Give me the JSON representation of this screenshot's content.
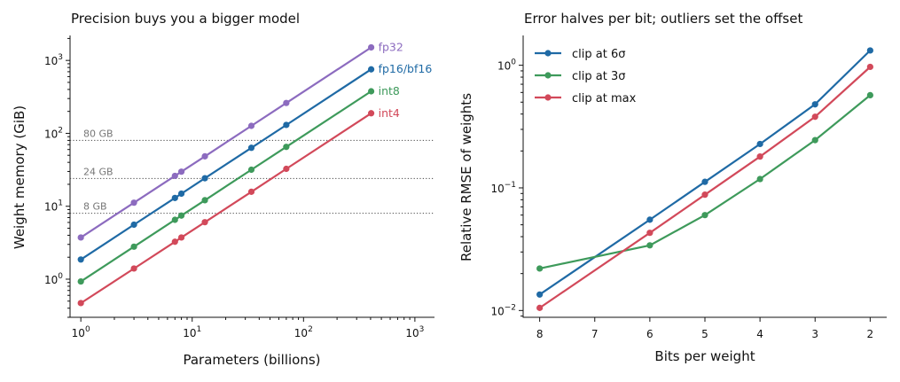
{
  "chart_data": [
    {
      "type": "line",
      "title": "Precision buys you a bigger model",
      "xlabel": "Parameters (billions)",
      "ylabel": "Weight memory (GiB)",
      "xscale": "log",
      "yscale": "log",
      "xlim": [
        0.8,
        1500
      ],
      "ylim": [
        0.3,
        2200
      ],
      "x_ticks": [
        {
          "value": 1,
          "base": "10",
          "exp": "0"
        },
        {
          "value": 10,
          "base": "10",
          "exp": "1"
        },
        {
          "value": 100,
          "base": "10",
          "exp": "2"
        },
        {
          "value": 1000,
          "base": "10",
          "exp": "3"
        }
      ],
      "y_ticks": [
        {
          "value": 1,
          "base": "10",
          "exp": "0"
        },
        {
          "value": 10,
          "base": "10",
          "exp": "1"
        },
        {
          "value": 100,
          "base": "10",
          "exp": "2"
        },
        {
          "value": 1000,
          "base": "10",
          "exp": "3"
        }
      ],
      "x": [
        1,
        3,
        7,
        8,
        13,
        34,
        70,
        405
      ],
      "series": [
        {
          "name": "fp32",
          "color": "#8c6bbf",
          "values": [
            3.73,
            11.2,
            26.1,
            29.8,
            48.4,
            126.7,
            260.8,
            1508.7
          ]
        },
        {
          "name": "fp16/bf16",
          "color": "#1f6aa5",
          "values": [
            1.86,
            5.59,
            13.0,
            14.9,
            24.2,
            63.3,
            130.4,
            754.4
          ]
        },
        {
          "name": "int8",
          "color": "#3e9a5b",
          "values": [
            0.93,
            2.79,
            6.52,
            7.45,
            12.1,
            31.7,
            65.2,
            377.2
          ]
        },
        {
          "name": "int4",
          "color": "#d2495a",
          "values": [
            0.47,
            1.4,
            3.26,
            3.73,
            6.05,
            15.8,
            32.6,
            188.6
          ]
        }
      ],
      "reference_lines": [
        {
          "value": 80,
          "label": "80 GB"
        },
        {
          "value": 24,
          "label": "24 GB"
        },
        {
          "value": 8,
          "label": "8 GB"
        }
      ],
      "grid": false,
      "legend": "labels at line ends"
    },
    {
      "type": "line",
      "title": "Error halves per bit; outliers set the offset",
      "xlabel": "Bits per weight",
      "ylabel": "Relative RMSE of weights",
      "yscale": "log",
      "xlim": [
        8.3,
        1.7
      ],
      "ylim": [
        0.0088,
        1.75
      ],
      "x_ticks": [
        "8",
        "7",
        "6",
        "5",
        "4",
        "3",
        "2"
      ],
      "y_ticks": [
        {
          "value": 0.01,
          "base": "10",
          "exp": "−2"
        },
        {
          "value": 0.1,
          "base": "10",
          "exp": "−1"
        },
        {
          "value": 1,
          "base": "10",
          "exp": "0"
        }
      ],
      "x": [
        8,
        6,
        5,
        4,
        3,
        2
      ],
      "series": [
        {
          "name": "clip at 6σ",
          "color": "#1f6aa5",
          "values": [
            0.0135,
            0.055,
            0.112,
            0.228,
            0.48,
            1.32
          ]
        },
        {
          "name": "clip at 3σ",
          "color": "#3e9a5b",
          "values": [
            0.022,
            0.034,
            0.06,
            0.118,
            0.245,
            0.57
          ]
        },
        {
          "name": "clip at max",
          "color": "#d2495a",
          "values": [
            0.0105,
            0.043,
            0.088,
            0.18,
            0.38,
            0.97
          ]
        }
      ],
      "grid": false,
      "legend": "top-left"
    }
  ]
}
